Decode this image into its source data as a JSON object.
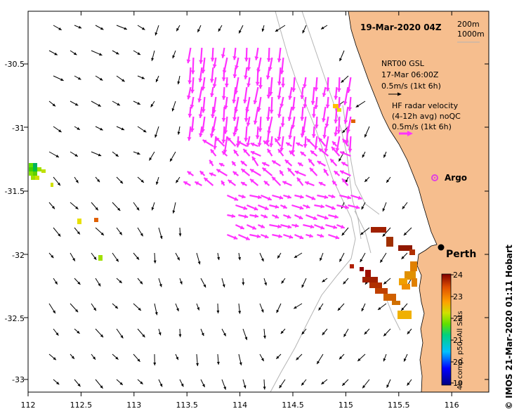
{
  "title": "19-Mar-2020 04Z",
  "contours": {
    "shallow": "200m",
    "deep": "1000m"
  },
  "legend": {
    "model_line1": "NRT00 GSL",
    "model_line2": "17-Mar 06:00Z",
    "model_scale": "0.5m/s (1kt 6h)",
    "radar_line1": "HF radar velocity",
    "radar_line2": "(4-12h avg) noQC",
    "radar_scale": "0.5m/s (1kt 6h)",
    "argo": "Argo"
  },
  "places": {
    "perth": "Perth"
  },
  "x_ticks": [
    "112",
    "112.5",
    "113",
    "113.5",
    "114",
    "114.5",
    "115",
    "115.5",
    "116"
  ],
  "y_ticks": [
    "-30.5",
    "-31",
    "-31.5",
    "-32",
    "-32.5",
    "-33"
  ],
  "colorbar": {
    "ticks": [
      "24",
      "23",
      "22",
      "21",
      "20",
      "19"
    ],
    "label": "4h comp, p50, All Sats"
  },
  "credit": "© IMOS 21-Mar-2020 01:11 Hobart",
  "colors": {
    "land": "#f6be8e",
    "radar": "#ff33ff",
    "contour": "#b4b4b4",
    "argo": "#e040e0"
  }
}
